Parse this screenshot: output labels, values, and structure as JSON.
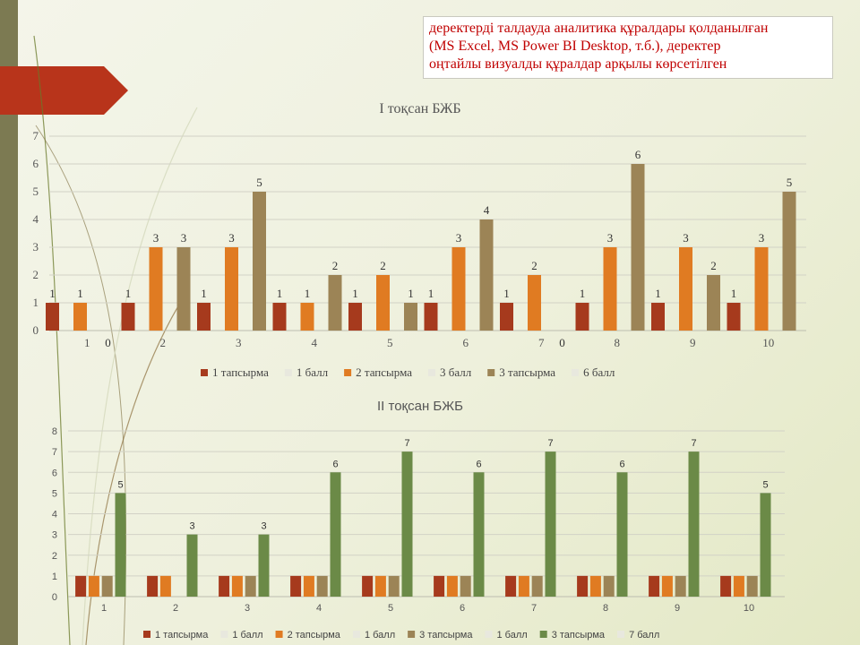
{
  "callout": {
    "lines": [
      "деректерді талдауда аналитика құралдары қолданылған",
      "(MS Excel, MS Power BI Desktop, т.б.), деректер",
      "оңтайлы визуалды құралдар арқылы көрсетілген"
    ]
  },
  "chart_data": [
    {
      "type": "bar",
      "title": "I тоқсан БЖБ",
      "categories": [
        "1",
        "2",
        "3",
        "4",
        "5",
        "6",
        "7",
        "8",
        "9",
        "10"
      ],
      "ylim": [
        0,
        7
      ],
      "yticks": [
        0,
        1,
        2,
        3,
        4,
        5,
        6,
        7
      ],
      "grid": true,
      "legend_position": "bottom",
      "series": [
        {
          "name": "1 тапсырма",
          "color": "#a63a1d",
          "values": [
            1,
            1,
            1,
            1,
            1,
            1,
            1,
            1,
            1,
            1
          ]
        },
        {
          "name": "1 балл",
          "color": "#e8e8de",
          "values": [
            0,
            0,
            0,
            0,
            0,
            0,
            0,
            0,
            0,
            0
          ]
        },
        {
          "name": "2 тапсырма",
          "color": "#e07b22",
          "values": [
            1,
            3,
            3,
            1,
            2,
            3,
            2,
            3,
            3,
            3
          ]
        },
        {
          "name": "3 балл",
          "color": "#e8e8de",
          "values": [
            0,
            0,
            0,
            0,
            0,
            0,
            0,
            0,
            0,
            0
          ]
        },
        {
          "name": "3 тапсырма",
          "color": "#9c8456",
          "values": [
            0,
            3,
            5,
            2,
            1,
            4,
            0,
            6,
            2,
            5
          ]
        },
        {
          "name": "6 балл",
          "color": "#e8e8de",
          "values": [
            0,
            0,
            0,
            0,
            0,
            0,
            0,
            0,
            0,
            0
          ]
        }
      ],
      "data_labels": [
        [
          "1",
          "1",
          "1",
          "1",
          "1",
          "1",
          "1",
          "1",
          "1",
          "1"
        ],
        [
          "",
          "",
          "",
          "",
          "",
          "",
          "",
          "",
          "",
          ""
        ],
        [
          "1",
          "3",
          "3",
          "1",
          "2",
          "3",
          "2",
          "3",
          "3",
          "3"
        ],
        [
          "",
          "",
          "",
          "",
          "",
          "",
          "",
          "",
          "",
          ""
        ],
        [
          "0",
          "3",
          "5",
          "2",
          "1",
          "4",
          "0",
          "6",
          "2",
          "5"
        ],
        [
          "",
          "",
          "",
          "",
          "",
          "",
          "",
          "",
          "",
          ""
        ]
      ]
    },
    {
      "type": "bar",
      "title": "II тоқсан БЖБ",
      "categories": [
        "1",
        "2",
        "3",
        "4",
        "5",
        "6",
        "7",
        "8",
        "9",
        "10"
      ],
      "ylim": [
        0,
        8
      ],
      "yticks": [
        0,
        1,
        2,
        3,
        4,
        5,
        6,
        7,
        8
      ],
      "grid": true,
      "legend_position": "bottom",
      "series": [
        {
          "name": "1 тапсырма",
          "color": "#a63a1d",
          "values": [
            1,
            1,
            1,
            1,
            1,
            1,
            1,
            1,
            1,
            1
          ]
        },
        {
          "name": "1 балл",
          "color": "#e8e8de",
          "values": [
            0,
            0,
            0,
            0,
            0,
            0,
            0,
            0,
            0,
            0
          ]
        },
        {
          "name": "2 тапсырма",
          "color": "#e07b22",
          "values": [
            1,
            1,
            1,
            1,
            1,
            1,
            1,
            1,
            1,
            1
          ]
        },
        {
          "name": "1 балл",
          "color": "#e8e8de",
          "values": [
            0,
            0,
            0,
            0,
            0,
            0,
            0,
            0,
            0,
            0
          ]
        },
        {
          "name": "3 тапсырма",
          "color": "#9c8456",
          "values": [
            1,
            0,
            1,
            1,
            1,
            1,
            1,
            1,
            1,
            1
          ]
        },
        {
          "name": "1 балл",
          "color": "#e8e8de",
          "values": [
            0,
            0,
            0,
            0,
            0,
            0,
            0,
            0,
            0,
            0
          ]
        },
        {
          "name": "3 тапсырма",
          "color": "#6b8a47",
          "values": [
            5,
            3,
            3,
            6,
            7,
            6,
            7,
            6,
            7,
            5
          ]
        },
        {
          "name": "7 балл",
          "color": "#e8e8de",
          "values": [
            0,
            0,
            0,
            0,
            0,
            0,
            0,
            0,
            0,
            0
          ]
        }
      ],
      "data_labels": [
        [
          "",
          "",
          "",
          "",
          "",
          "",
          "",
          "",
          "",
          ""
        ],
        [
          "",
          "",
          "",
          "",
          "",
          "",
          "",
          "",
          "",
          ""
        ],
        [
          "",
          "",
          "",
          "",
          "",
          "",
          "",
          "",
          "",
          ""
        ],
        [
          "",
          "",
          "",
          "",
          "",
          "",
          "",
          "",
          "",
          ""
        ],
        [
          "",
          "",
          "",
          "",
          "",
          "",
          "",
          "",
          "",
          ""
        ],
        [
          "",
          "",
          "",
          "",
          "",
          "",
          "",
          "",
          "",
          ""
        ],
        [
          "5",
          "3",
          "3",
          "6",
          "7",
          "6",
          "7",
          "6",
          "7",
          "5"
        ],
        [
          "",
          "",
          "",
          "",
          "",
          "",
          "",
          "",
          "",
          ""
        ]
      ]
    }
  ]
}
